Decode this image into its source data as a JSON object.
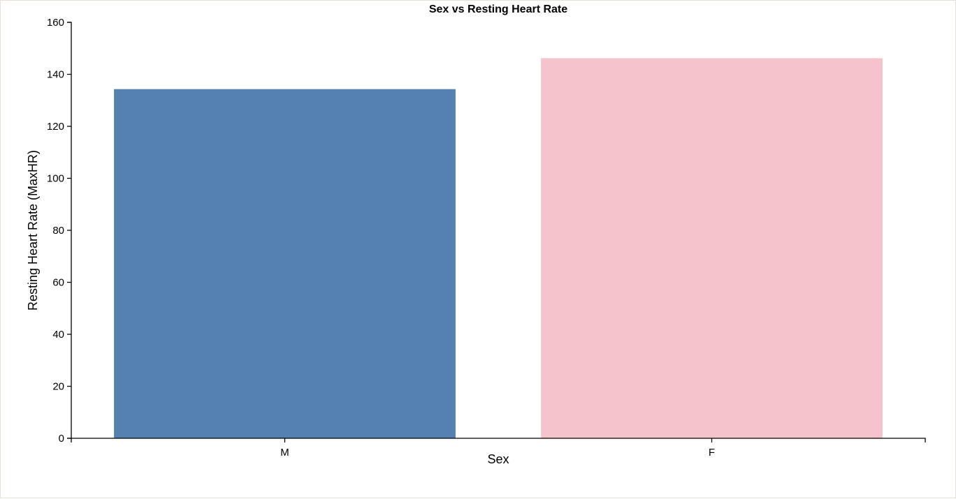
{
  "chart_data": {
    "type": "bar",
    "title": "Sex vs Resting Heart Rate",
    "xlabel": "Sex",
    "ylabel": "Resting Heart Rate (MaxHR)",
    "categories": [
      "M",
      "F"
    ],
    "values": [
      134.3,
      146.2
    ],
    "colors": [
      "#5581b1",
      "#f5c3cc"
    ],
    "ylim": [
      0,
      160
    ],
    "yticks": [
      0,
      20,
      40,
      60,
      80,
      100,
      120,
      140,
      160
    ],
    "grid": false,
    "legend": "none"
  }
}
